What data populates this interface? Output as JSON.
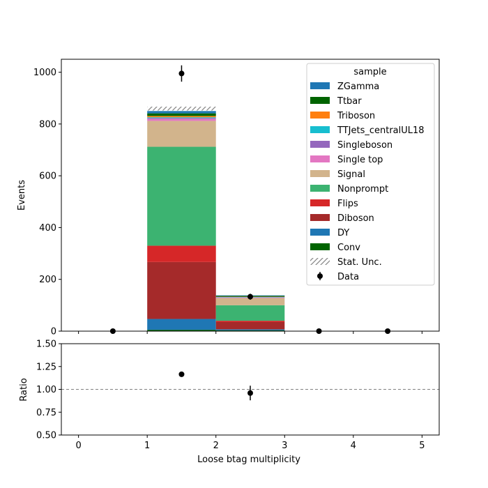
{
  "chart_data": [
    {
      "type": "bar",
      "stacked": true,
      "bin_edges": [
        0,
        1,
        2,
        3,
        4,
        5
      ],
      "x_center_range": [
        0,
        5
      ],
      "xlim": [
        -0.25,
        5.25
      ],
      "ylim": [
        0,
        1050
      ],
      "ylabel": "Events",
      "xlabel": "",
      "xticks": [
        "0",
        "1",
        "2",
        "3",
        "4",
        "5"
      ],
      "yticks": [
        "0",
        "200",
        "400",
        "600",
        "800",
        "1000"
      ],
      "legend": {
        "title": "sample",
        "placement": "top-right"
      },
      "series": [
        {
          "name": "Conv",
          "color": "#006400",
          "values": [
            0,
            5,
            3,
            0,
            0
          ]
        },
        {
          "name": "DY",
          "color": "#1f77b4",
          "values": [
            0,
            42,
            4,
            0,
            0
          ]
        },
        {
          "name": "Diboson",
          "color": "#a52a2a",
          "values": [
            0,
            220,
            28,
            0,
            0
          ]
        },
        {
          "name": "Flips",
          "color": "#d62728",
          "values": [
            0,
            63,
            5,
            0,
            0
          ]
        },
        {
          "name": "Nonprompt",
          "color": "#3cb371",
          "values": [
            0,
            382,
            60,
            0,
            0
          ]
        },
        {
          "name": "Signal",
          "color": "#d2b48c",
          "values": [
            0,
            100,
            28,
            0,
            0
          ]
        },
        {
          "name": "Single top",
          "color": "#e377c2",
          "values": [
            0,
            8,
            2,
            0,
            0
          ]
        },
        {
          "name": "Singleboson",
          "color": "#9467bd",
          "values": [
            0,
            3,
            1,
            0,
            0
          ]
        },
        {
          "name": "TTJets_centralUL18",
          "color": "#17becf",
          "values": [
            0,
            3,
            1,
            0,
            0
          ]
        },
        {
          "name": "Triboson",
          "color": "#ff7f0e",
          "values": [
            0,
            5,
            1,
            0,
            0
          ]
        },
        {
          "name": "Ttbar",
          "color": "#006400",
          "values": [
            0,
            10,
            3,
            0,
            0
          ]
        },
        {
          "name": "ZGamma",
          "color": "#1f77b4",
          "values": [
            0,
            9,
            2,
            0,
            0
          ]
        }
      ],
      "stat_unc": {
        "name": "Stat. Unc.",
        "bins": [
          1
        ],
        "lower": [
          852
        ],
        "upper": [
          867
        ]
      },
      "data": {
        "name": "Data",
        "x": [
          0.5,
          1.5,
          2.5,
          3.5,
          4.5
        ],
        "y": [
          0,
          995,
          133,
          0,
          0
        ],
        "yerr": [
          0,
          31.5,
          11.5,
          0,
          0
        ]
      }
    },
    {
      "type": "scatter",
      "xlabel": "Loose btag multiplicity",
      "ylabel": "Ratio",
      "xlim": [
        -0.25,
        5.25
      ],
      "ylim": [
        0.5,
        1.5
      ],
      "xticks": [
        "0",
        "1",
        "2",
        "3",
        "4",
        "5"
      ],
      "yticks": [
        "0.50",
        "0.75",
        "1.00",
        "1.25",
        "1.50"
      ],
      "reference_line": 1.0,
      "x": [
        1.5,
        2.5
      ],
      "y": [
        1.165,
        0.96
      ],
      "yerr": [
        0.015,
        0.08
      ]
    }
  ]
}
